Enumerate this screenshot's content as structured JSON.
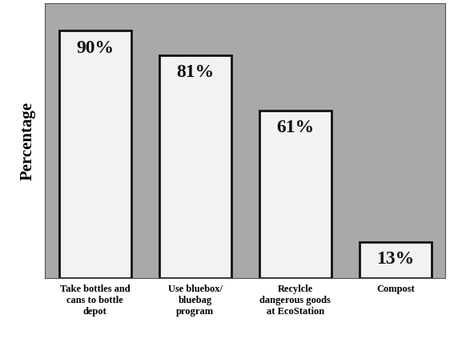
{
  "chart_data": {
    "type": "bar",
    "y_label": "Percentage",
    "categories": [
      "Take bottles and\ncans to bottle\ndepot",
      "Use bluebox/\nbluebag\nprogram",
      "Recylcle\ndangerous goods\nat EcoStation",
      "Compost"
    ],
    "values": [
      90,
      81,
      61,
      13
    ],
    "value_labels": [
      "90%",
      "81%",
      "61%",
      "13%"
    ],
    "color": "#f2f2f2",
    "ylim": [
      0,
      100
    ],
    "data_labels": true,
    "tick_labels": "x",
    "grid": false
  }
}
